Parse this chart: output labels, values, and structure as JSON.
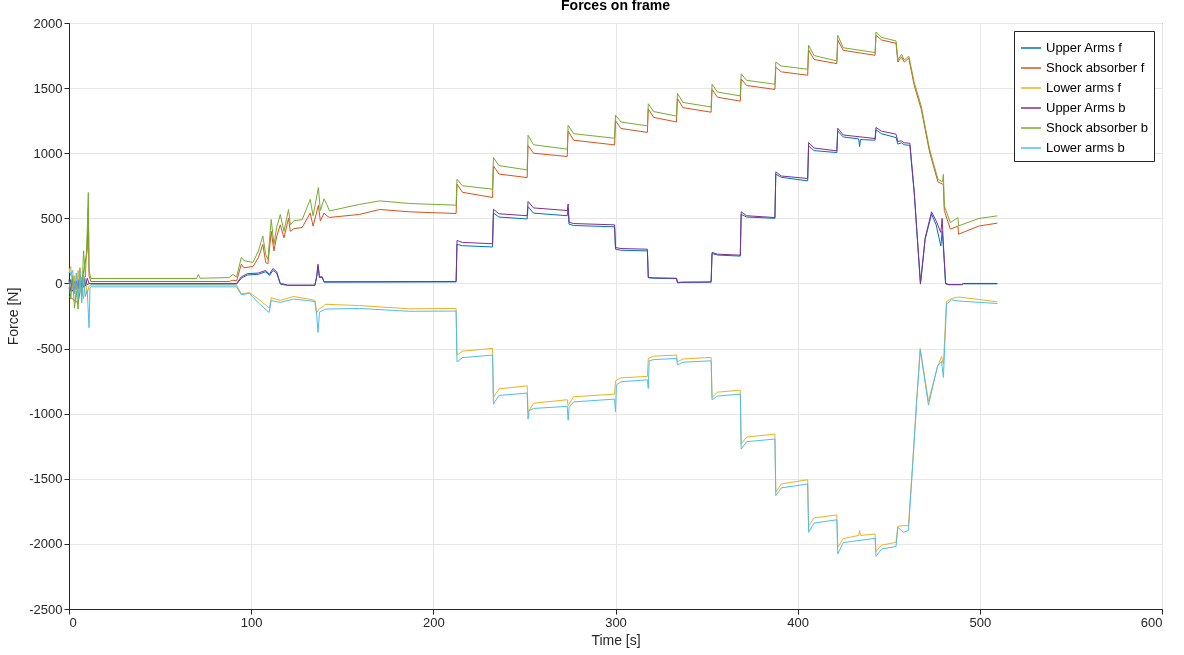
{
  "chart_data": {
    "type": "line",
    "title": "Forces on frame",
    "xlabel": "Time [s]",
    "ylabel": "Force [N]",
    "xlim": [
      0,
      600
    ],
    "xticks": [
      0,
      100,
      200,
      300,
      400,
      500,
      600
    ],
    "ylim": [
      -2500,
      2000
    ],
    "yticks": [
      -2500,
      -2000,
      -1500,
      -1000,
      -500,
      0,
      500,
      1000,
      1500,
      2000
    ],
    "grid": true,
    "legend": "top right",
    "series": [
      {
        "name": "Upper Arms f",
        "color": "#0072bd",
        "x": [
          0,
          1,
          2,
          3,
          4,
          5,
          6,
          7,
          8,
          9,
          10,
          11,
          12,
          92,
          94.6,
          98,
          104,
          108,
          110,
          112,
          114,
          116,
          118,
          120,
          135,
          136,
          136.7,
          137.5,
          139,
          140,
          212.5,
          213,
          216,
          232.5,
          233,
          236,
          251.5,
          252,
          255,
          273.5,
          274,
          274.5,
          277,
          299.5,
          300,
          303,
          317.5,
          318,
          321,
          333.5,
          334,
          337,
          352.5,
          353,
          356,
          368.5,
          369,
          372,
          387.5,
          388,
          391,
          405.5,
          406,
          409,
          421.5,
          422,
          425,
          433.5,
          434,
          434.5,
          442.5,
          443,
          446,
          454,
          455,
          457,
          458.5,
          461.6,
          464,
          467.4,
          470,
          473.5,
          476,
          478.6,
          479.3,
          480,
          481.2,
          483,
          490,
          491,
          509.6
        ],
        "values": [
          -40,
          30,
          -60,
          20,
          -50,
          30,
          -40,
          40,
          -30,
          30,
          -10,
          0,
          -5,
          -5,
          40,
          65,
          70,
          90,
          60,
          100,
          80,
          -5,
          -10,
          -15,
          -15,
          50,
          130,
          45,
          45,
          10,
          12,
          300,
          290,
          280,
          540,
          510,
          495,
          590,
          540,
          520,
          580,
          455,
          445,
          435,
          263,
          255,
          250,
          44,
          40,
          37,
          5,
          8,
          10,
          230,
          218,
          210,
          530,
          510,
          500,
          839,
          815,
          788,
          1056,
          1020,
          1005,
          1171,
          1125,
          1110,
          1050,
          1105,
          1100,
          1180,
          1150,
          1120,
          1070,
          1080,
          1065,
          1060,
          690,
          -5,
          340,
          532,
          450,
          288,
          400,
          280,
          -3,
          -10,
          -10,
          -3,
          -3
        ]
      },
      {
        "name": "Shock absorber f",
        "color": "#d95319",
        "x": [
          0,
          5,
          10,
          10.6,
          11,
          12,
          88,
          90,
          92,
          94.6,
          96,
          101,
          104,
          106.4,
          108,
          109.2,
          111,
          112.5,
          114,
          116,
          118,
          120.5,
          121.5,
          123.3,
          128,
          132.4,
          134,
          136.9,
          138,
          140,
          141.5,
          143,
          159.5,
          170.5,
          187,
          212.5,
          213,
          216,
          232.5,
          233,
          236,
          251.5,
          252,
          255,
          273.5,
          274,
          277,
          299.5,
          300,
          303,
          317.5,
          318,
          321,
          333.5,
          334,
          337,
          352.5,
          353,
          356,
          368.5,
          369,
          372,
          387.5,
          388,
          391,
          405.5,
          406,
          409,
          421.5,
          422,
          425,
          442.5,
          443,
          446,
          454,
          455,
          457,
          458.5,
          461,
          464,
          467.8,
          472.4,
          477,
          480,
          480.5,
          483.8,
          488,
          488.3,
          499.5,
          509.6
        ],
        "values": [
          -100,
          -150,
          250,
          583,
          60,
          15,
          15,
          25,
          20,
          148,
          120,
          130,
          200,
          300,
          160,
          150,
          400,
          250,
          360,
          450,
          350,
          500,
          400,
          420,
          430,
          540,
          440,
          600,
          480,
          540,
          520,
          507,
          530,
          568,
          550,
          537,
          762,
          700,
          660,
          902,
          840,
          813,
          1060,
          1000,
          975,
          1171,
          1100,
          1064,
          1250,
          1190,
          1160,
          1340,
          1275,
          1240,
          1420,
          1350,
          1315,
          1490,
          1430,
          1400,
          1570,
          1520,
          1490,
          1660,
          1625,
          1599,
          1793,
          1720,
          1688,
          1870,
          1790,
          1752,
          1906,
          1870,
          1844,
          1700,
          1740,
          1700,
          1730,
          1520,
          1340,
          1010,
          780,
          760,
          560,
          417,
          440,
          378,
          441,
          463
        ]
      },
      {
        "name": "Lower arms f",
        "color": "#edb120",
        "x": [
          0,
          1,
          2,
          3,
          4,
          5,
          6,
          7,
          8,
          9,
          10,
          11,
          12,
          92,
          94.6,
          99,
          104,
          110,
          111,
          116,
          123.3,
          131.5,
          135,
          136,
          137,
          141,
          159.5,
          187,
          212.5,
          213,
          216,
          232.5,
          233,
          236,
          251.5,
          252,
          255,
          273.5,
          274,
          277,
          299.5,
          300,
          303,
          317.5,
          318,
          321,
          333.5,
          334,
          337,
          352.5,
          353,
          356,
          368.5,
          369,
          372,
          387.5,
          388,
          391,
          405.5,
          406,
          409,
          421.5,
          422,
          425,
          433.5,
          434,
          434.5,
          442.5,
          443,
          446,
          454,
          455,
          457.9,
          460.8,
          463,
          465.3,
          467.3,
          471.8,
          476.8,
          479,
          480,
          481.7,
          484.5,
          488.3,
          509.6
        ],
        "values": [
          80,
          130,
          -50,
          60,
          -100,
          100,
          -60,
          50,
          -120,
          40,
          -80,
          -20,
          -13,
          -13,
          -80,
          -70,
          -120,
          -190,
          -110,
          -130,
          -100,
          -120,
          -130,
          -225,
          -200,
          -160,
          -170,
          -195,
          -192,
          -550,
          -520,
          -499,
          -875,
          -810,
          -786,
          -990,
          -920,
          -893,
          -939,
          -870,
          -850,
          -748,
          -725,
          -714,
          -576,
          -558,
          -550,
          -602,
          -580,
          -568,
          -875,
          -835,
          -819,
          -1233,
          -1180,
          -1157,
          -1604,
          -1540,
          -1507,
          -1865,
          -1800,
          -1778,
          -2026,
          -1960,
          -1935,
          -1898,
          -1935,
          -1924,
          -2059,
          -2010,
          -1988,
          -1865,
          -1860,
          -1860,
          -1410,
          -900,
          -500,
          -904,
          -640,
          -560,
          -620,
          -140,
          -115,
          -104,
          -141
        ]
      },
      {
        "name": "Upper Arms b",
        "color": "#7e2f8e",
        "x": [
          0,
          1,
          2,
          3,
          4,
          5,
          6,
          7,
          8,
          9,
          10,
          11,
          12,
          92,
          94.6,
          98,
          104,
          108,
          110,
          112,
          114,
          116,
          118,
          120,
          135,
          136,
          136.7,
          137.5,
          139,
          140,
          212.5,
          213,
          216,
          232.5,
          233,
          236,
          251.5,
          252,
          255,
          273.5,
          274,
          274.5,
          277,
          299.5,
          300,
          303,
          317.5,
          318,
          321,
          333.5,
          334,
          337,
          352.5,
          353,
          356,
          368.5,
          369,
          372,
          387.5,
          388,
          391,
          405.5,
          406,
          409,
          421.5,
          422,
          425,
          442.5,
          443,
          446,
          454,
          455,
          457,
          458.5,
          461.6,
          464,
          467.4,
          470,
          473.5,
          476,
          478.6,
          479.3,
          480,
          481.2,
          483,
          490,
          491,
          509.6
        ],
        "values": [
          30,
          -60,
          40,
          -51,
          20,
          -40,
          50,
          -30,
          60,
          -20,
          40,
          0,
          0,
          0,
          51,
          75,
          80,
          100,
          70,
          115,
          90,
          0,
          -5,
          -13,
          -13,
          60,
          148,
          51,
          51,
          13,
          15,
          330,
          315,
          305,
          570,
          535,
          520,
          630,
          580,
          560,
          610,
          470,
          460,
          450,
          276,
          268,
          263,
          46,
          43,
          40,
          8,
          10,
          12,
          238,
          225,
          217,
          550,
          520,
          506,
          857,
          825,
          806,
          1082,
          1040,
          1018,
          1192,
          1140,
          1113,
          1197,
          1170,
          1146,
          1090,
          1095,
          1080,
          1077,
          700,
          0,
          350,
          550,
          480,
          392,
          500,
          300,
          0,
          -8,
          -8,
          0,
          0
        ]
      },
      {
        "name": "Shock absorber b",
        "color": "#77ac30",
        "x": [
          0,
          1,
          2,
          3,
          4,
          5,
          6,
          7,
          8,
          9,
          10,
          10.6,
          11,
          12,
          70,
          71,
          72,
          88,
          90,
          92,
          94.6,
          96,
          101,
          104,
          106.4,
          108,
          109.2,
          111,
          112.5,
          114,
          116,
          118,
          120.5,
          121.5,
          123.3,
          128,
          132.4,
          134,
          136.9,
          138,
          140,
          141.5,
          143,
          159.5,
          170.5,
          187,
          212.5,
          213,
          216,
          232.5,
          233,
          236,
          251.5,
          252,
          255,
          273.5,
          274,
          277,
          299.5,
          300,
          303,
          317.5,
          318,
          321,
          333.5,
          334,
          337,
          352.5,
          353,
          356,
          368.5,
          369,
          372,
          387.5,
          388,
          391,
          405.5,
          406,
          409,
          421.5,
          422,
          425,
          442.5,
          443,
          446,
          454,
          455,
          457,
          458.5,
          461,
          464,
          467.8,
          472.4,
          477,
          479.5,
          480,
          480.5,
          483.8,
          488,
          488.3,
          499.5,
          509.6
        ],
        "values": [
          20,
          -120,
          60,
          -190,
          -60,
          -197,
          120,
          -100,
          250,
          50,
          400,
          698,
          100,
          38,
          38,
          70,
          40,
          45,
          70,
          50,
          200,
          175,
          161,
          250,
          365,
          220,
          185,
          491,
          300,
          430,
          530,
          400,
          568,
          450,
          481,
          490,
          645,
          520,
          736,
          560,
          650,
          607,
          557,
          607,
          634,
          614,
          601,
          800,
          750,
          724,
          967,
          905,
          872,
          1138,
          1065,
          1031,
          1215,
          1150,
          1115,
          1292,
          1240,
          1210,
          1380,
          1320,
          1285,
          1460,
          1390,
          1355,
          1530,
          1470,
          1440,
          1610,
          1560,
          1530,
          1700,
          1670,
          1645,
          1829,
          1750,
          1709,
          1906,
          1810,
          1773,
          1931,
          1890,
          1862,
          1716,
          1760,
          1716,
          1745,
          1543,
          1363,
          1031,
          800,
          780,
          837,
          596,
          468,
          506,
          442,
          499,
          519
        ]
      },
      {
        "name": "Lower arms b",
        "color": "#4dbeee",
        "x": [
          0,
          1,
          2,
          3,
          4,
          5,
          6,
          7,
          8,
          9,
          10,
          11,
          11.5,
          12,
          92,
          94.6,
          99,
          104,
          109.9,
          111,
          116,
          123.3,
          131.5,
          135,
          136,
          136.7,
          137.5,
          141,
          159.5,
          187,
          212.5,
          213,
          216,
          232.5,
          233,
          236,
          251.5,
          252,
          252.5,
          255,
          273.5,
          274,
          274.5,
          277,
          299.5,
          300,
          300.5,
          303,
          317.5,
          318,
          318.5,
          321,
          333.5,
          334,
          337,
          352.5,
          353,
          356,
          368.5,
          369,
          372,
          387.5,
          388,
          391,
          405.5,
          406,
          409,
          421.5,
          422,
          425,
          442.5,
          443,
          446,
          454,
          455,
          457.9,
          460.8,
          463,
          465.3,
          467.3,
          471.8,
          476.8,
          479,
          480,
          481.7,
          484.5,
          488.3,
          509.6
        ],
        "values": [
          123,
          60,
          100,
          -80,
          80,
          -120,
          90,
          -150,
          60,
          -100,
          -50,
          -340,
          -40,
          -26,
          -26,
          -87,
          -76,
          -150,
          -223,
          -132,
          -145,
          -120,
          -132,
          -140,
          -249,
          -376,
          -220,
          -197,
          -192,
          -214,
          -212,
          -602,
          -570,
          -550,
          -926,
          -860,
          -842,
          -1041,
          -978,
          -960,
          -944,
          -1050,
          -952,
          -910,
          -888,
          -985,
          -780,
          -755,
          -740,
          -806,
          -594,
          -585,
          -576,
          -625,
          -605,
          -594,
          -893,
          -865,
          -850,
          -1272,
          -1215,
          -1195,
          -1630,
          -1570,
          -1540,
          -1911,
          -1840,
          -1815,
          -2077,
          -1990,
          -1957,
          -2096,
          -2040,
          -2019,
          -1873,
          -1911,
          -1898,
          -1425,
          -914,
          -510,
          -934,
          -632,
          -600,
          -721,
          -159,
          -126,
          -135,
          -154
        ]
      }
    ]
  }
}
